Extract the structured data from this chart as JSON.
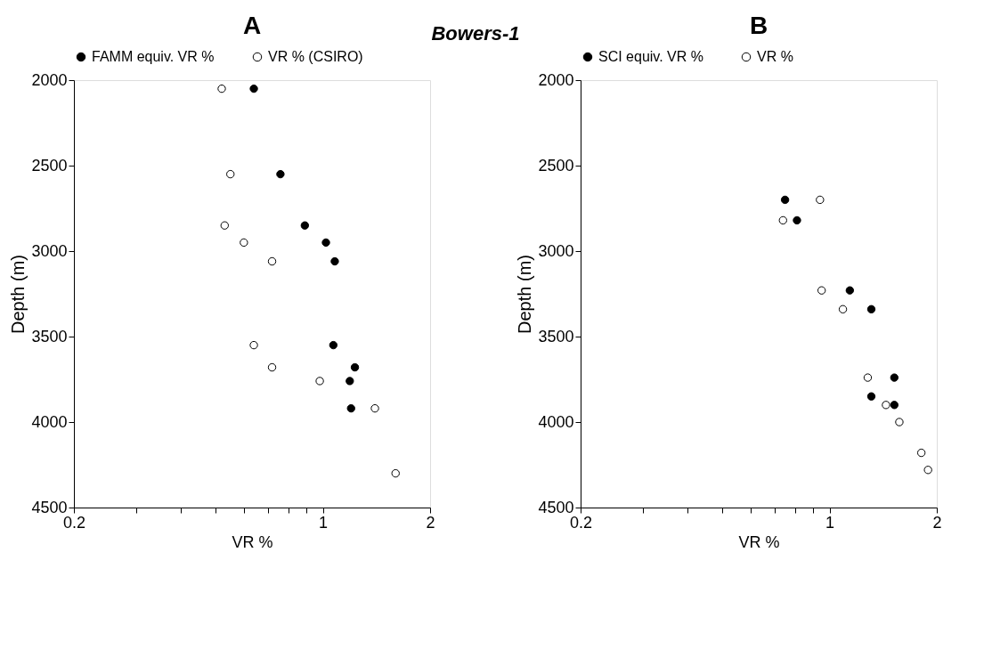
{
  "chart_data": [
    {
      "type": "scatter",
      "title": "A",
      "xlabel": "VR %",
      "ylabel": "Depth (m)",
      "annotations": [
        "Bowers-1"
      ],
      "log": "x",
      "marker": "circle",
      "legend": "top",
      "grid": false,
      "xlim": [
        0.2,
        2
      ],
      "xticks": [
        0.2,
        {
          "value": 0.3,
          "label": null
        },
        {
          "value": 0.4,
          "label": null
        },
        {
          "value": 0.5,
          "label": null
        },
        {
          "value": 0.6,
          "label": null
        },
        {
          "value": 0.7,
          "label": null
        },
        {
          "value": 0.8,
          "label": null
        },
        {
          "value": 0.9,
          "label": null
        },
        1,
        2
      ],
      "ylim": [
        4500,
        2000
      ],
      "yticks": [
        2000,
        2500,
        3000,
        3500,
        4000,
        4500
      ],
      "series": [
        {
          "name": "FAMM equiv. VR %",
          "color": "#000000",
          "x": [
            0.64,
            0.76,
            0.89,
            1.02,
            1.08,
            1.07,
            1.23,
            1.19,
            1.2
          ],
          "values": [
            2050,
            2550,
            2850,
            2950,
            3060,
            3550,
            3680,
            3760,
            3920
          ]
        },
        {
          "name": "VR % (CSIRO)",
          "color": "#ffffff",
          "x": [
            0.52,
            0.55,
            0.53,
            0.6,
            0.72,
            0.64,
            0.72,
            0.98,
            1.4,
            1.6
          ],
          "values": [
            2050,
            2550,
            2850,
            2950,
            3060,
            3550,
            3680,
            3760,
            3920,
            4300
          ]
        }
      ]
    },
    {
      "type": "scatter",
      "title": "B",
      "xlabel": "VR %",
      "ylabel": "Depth (m)",
      "log": "x",
      "marker": "circle",
      "legend": "top",
      "grid": false,
      "xlim": [
        0.2,
        2
      ],
      "xticks": [
        0.2,
        {
          "value": 0.3,
          "label": null
        },
        {
          "value": 0.4,
          "label": null
        },
        {
          "value": 0.5,
          "label": null
        },
        {
          "value": 0.6,
          "label": null
        },
        {
          "value": 0.7,
          "label": null
        },
        {
          "value": 0.8,
          "label": null
        },
        {
          "value": 0.9,
          "label": null
        },
        1,
        2
      ],
      "ylim": [
        4500,
        2000
      ],
      "yticks": [
        2000,
        2500,
        3000,
        3500,
        4000,
        4500
      ],
      "series": [
        {
          "name": "SCI equiv. VR %",
          "color": "#000000",
          "x": [
            0.75,
            0.81,
            1.14,
            1.31,
            1.52,
            1.31,
            1.52
          ],
          "values": [
            2700,
            2820,
            3230,
            3340,
            3740,
            3850,
            3900
          ]
        },
        {
          "name": "VR %",
          "color": "#ffffff",
          "x": [
            0.94,
            0.74,
            0.95,
            1.09,
            1.28,
            1.44,
            1.57,
            1.81,
            1.89
          ],
          "values": [
            2700,
            2820,
            3230,
            3340,
            3740,
            3900,
            4000,
            4180,
            4280
          ]
        }
      ]
    }
  ]
}
